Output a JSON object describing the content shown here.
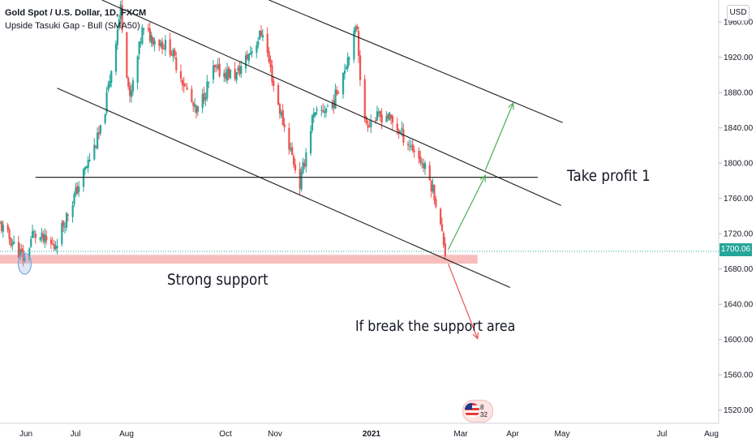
{
  "header": {
    "symbol_line": "Gold Spot / U.S. Dollar, 1D, FXCM",
    "indicator_line": "Upside Tasuki Gap - Bull (SMA50)",
    "currency": "USD",
    "last_price": "1700.06"
  },
  "annotations": {
    "take_profit": "Take profit 1",
    "support": "Strong support",
    "breakdown": "If break the support area"
  },
  "event_badge": {
    "text": "8 32"
  },
  "colors": {
    "up": "#26a69a",
    "down": "#ef5350",
    "support_zone": "#f7b3b3",
    "price_line": "#26a69a",
    "trend_lines": "#1f1f1f",
    "bull_arrow": "#4caf50",
    "bear_arrow": "#ef5350",
    "circle_highlight": "#7aa7e0"
  },
  "chart_data": {
    "type": "candlestick",
    "y_axis": {
      "ticks": [
        1960,
        1920,
        1880,
        1840,
        1800,
        1760,
        1720,
        1680,
        1640,
        1600,
        1560,
        1520
      ],
      "tick_labels": [
        "1960.00",
        "1920.00",
        "1880.00",
        "1840.00",
        "1800.00",
        "1760.00",
        "1720.00",
        "1680.00",
        "1640.00",
        "1600.00",
        "1560.00",
        "1520.00"
      ],
      "ylim": [
        1505,
        1985
      ],
      "grid": false
    },
    "x_axis": {
      "labels": [
        "Jun",
        "Jul",
        "Aug",
        "Oct",
        "Nov",
        "2021",
        "Mar",
        "Apr",
        "May",
        "Jul",
        "Aug"
      ],
      "bold": [
        false,
        false,
        false,
        false,
        false,
        true,
        false,
        false,
        false,
        false,
        false
      ],
      "xlim": [
        "2020-05-20",
        "2021-08-28"
      ]
    },
    "price_path": [
      {
        "date": "2020-05-20",
        "price": 1730
      },
      {
        "date": "2020-06-05",
        "price": 1690
      },
      {
        "date": "2020-06-10",
        "price": 1720
      },
      {
        "date": "2020-06-24",
        "price": 1705
      },
      {
        "date": "2020-07-10",
        "price": 1775
      },
      {
        "date": "2020-07-25",
        "price": 1840
      },
      {
        "date": "2020-08-06",
        "price": 1975
      },
      {
        "date": "2020-08-12",
        "price": 1870
      },
      {
        "date": "2020-08-20",
        "price": 1950
      },
      {
        "date": "2020-09-07",
        "price": 1930
      },
      {
        "date": "2020-09-24",
        "price": 1855
      },
      {
        "date": "2020-10-05",
        "price": 1905
      },
      {
        "date": "2020-10-20",
        "price": 1900
      },
      {
        "date": "2020-11-06",
        "price": 1950
      },
      {
        "date": "2020-11-14",
        "price": 1880
      },
      {
        "date": "2020-11-30",
        "price": 1775
      },
      {
        "date": "2020-12-08",
        "price": 1850
      },
      {
        "date": "2020-12-22",
        "price": 1870
      },
      {
        "date": "2021-01-06",
        "price": 1955
      },
      {
        "date": "2021-01-10",
        "price": 1845
      },
      {
        "date": "2021-01-25",
        "price": 1855
      },
      {
        "date": "2021-02-03",
        "price": 1835
      },
      {
        "date": "2021-02-14",
        "price": 1810
      },
      {
        "date": "2021-02-20",
        "price": 1790
      },
      {
        "date": "2021-02-25",
        "price": 1765
      },
      {
        "date": "2021-03-04",
        "price": 1700
      }
    ],
    "support_zone": {
      "from": "2020-05-20",
      "to": "2021-03-25",
      "y_low": 1686,
      "y_high": 1696
    },
    "current_price": 1700.06,
    "horizontal_level": {
      "from": "2020-06-12",
      "to": "2021-05-03",
      "y": 1784
    },
    "channel_lines": [
      {
        "from": {
          "date": "2020-07-25",
          "price": 1985
        },
        "to": {
          "date": "2021-05-18",
          "price": 1752
        }
      },
      {
        "from": {
          "date": "2020-06-26",
          "price": 1885
        },
        "to": {
          "date": "2021-04-15",
          "price": 1659
        }
      },
      {
        "from": {
          "date": "2020-11-10",
          "price": 1985
        },
        "to": {
          "date": "2021-05-19",
          "price": 1846
        }
      }
    ],
    "arrows": [
      {
        "from": {
          "date": "2021-03-06",
          "price": 1702
        },
        "to": {
          "date": "2021-03-30",
          "price": 1786
        },
        "direction": "bullish"
      },
      {
        "from": {
          "date": "2021-03-30",
          "price": 1792
        },
        "to": {
          "date": "2021-04-17",
          "price": 1868
        },
        "direction": "bullish"
      },
      {
        "from": {
          "date": "2021-03-06",
          "price": 1686
        },
        "to": {
          "date": "2021-03-25",
          "price": 1601
        },
        "direction": "bearish"
      }
    ],
    "highlight_circle": {
      "date": "2020-06-05",
      "price": 1686
    }
  }
}
